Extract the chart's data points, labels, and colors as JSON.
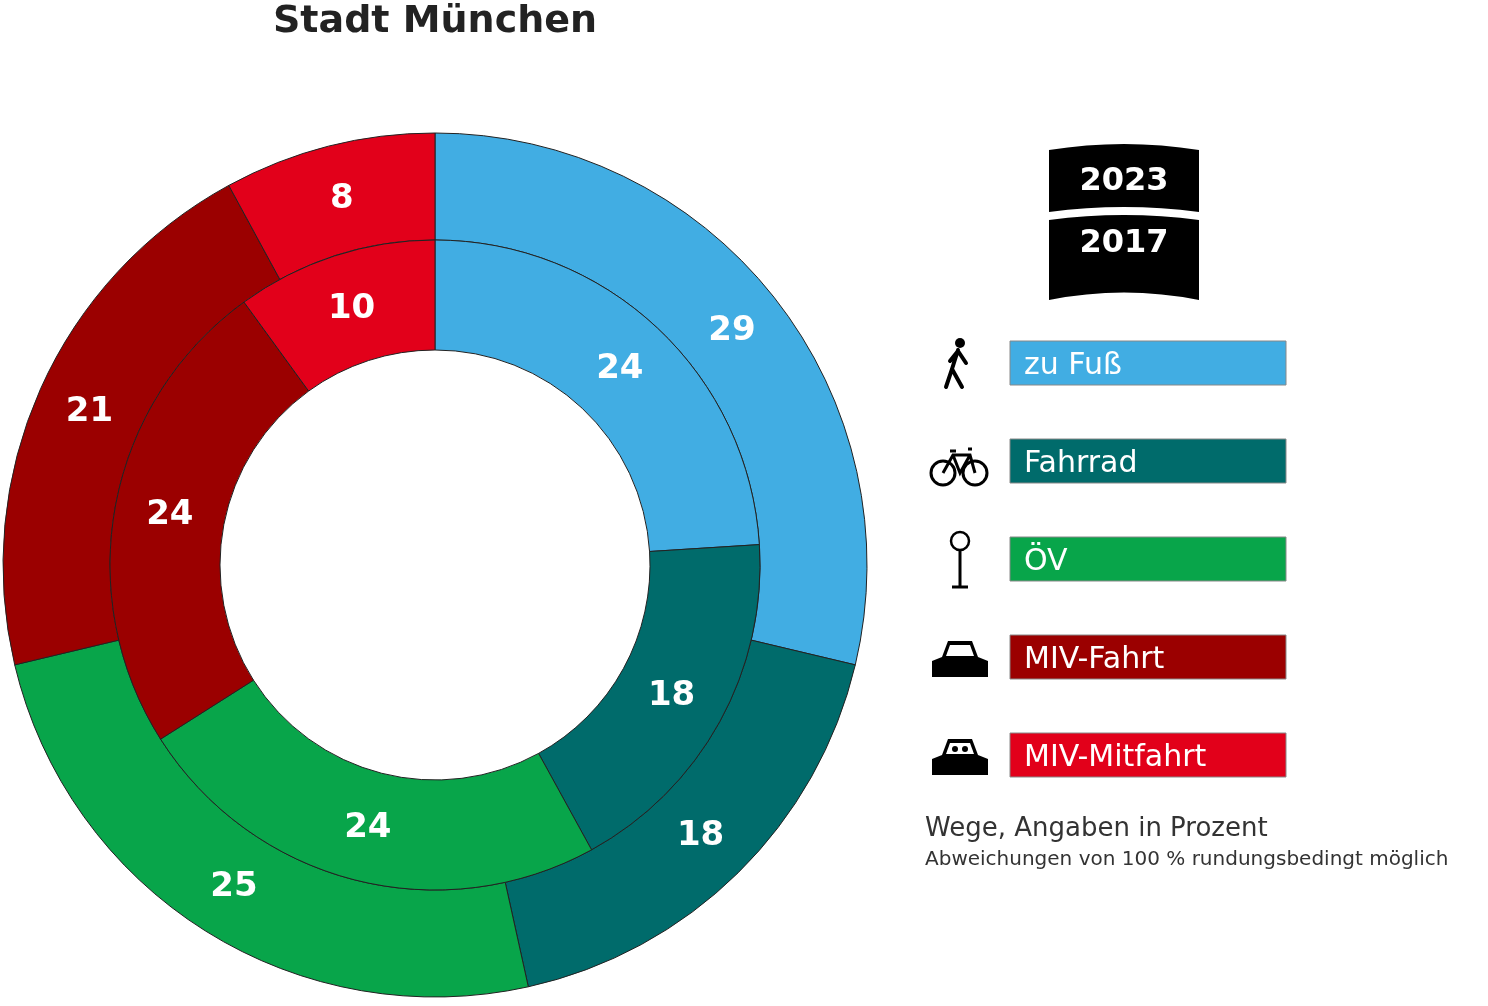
{
  "chart_data": {
    "type": "donut",
    "title": "Stadt München",
    "categories": [
      "zu Fuß",
      "Fahrrad",
      "ÖV",
      "MIV-Fahrt",
      "MIV-Mitfahrt"
    ],
    "colors": [
      "#41ade3",
      "#006b6b",
      "#08a54a",
      "#9b0000",
      "#e2001a"
    ],
    "series": [
      {
        "name": "2023",
        "values": [
          29,
          18,
          25,
          21,
          8
        ]
      },
      {
        "name": "2017",
        "values": [
          24,
          18,
          24,
          24,
          10
        ]
      }
    ],
    "data_labels": true,
    "legend": "right",
    "annotations": [
      "Wege, Angaben in Prozent",
      "Abweichungen von 100 % rundungsbedingt möglich"
    ]
  }
}
